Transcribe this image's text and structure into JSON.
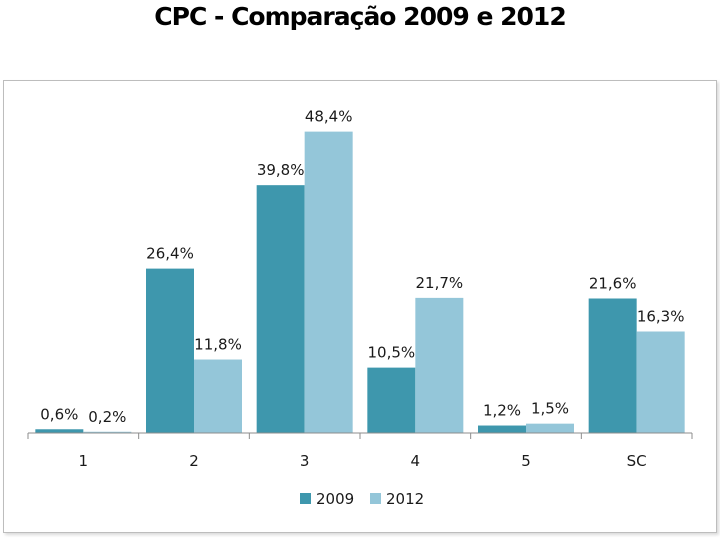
{
  "chart_data": {
    "type": "bar",
    "title": "CPC - Comparação 2009 e 2012",
    "categories": [
      "1",
      "2",
      "3",
      "4",
      "5",
      "SC"
    ],
    "series": [
      {
        "name": "2009",
        "color": "#3e97ad",
        "values": [
          0.6,
          26.4,
          39.8,
          10.5,
          1.2,
          21.6
        ],
        "labels": [
          "0,6%",
          "26,4%",
          "39,8%",
          "10,5%",
          "1,2%",
          "21,6%"
        ]
      },
      {
        "name": "2012",
        "color": "#94c6d9",
        "values": [
          0.2,
          11.8,
          48.4,
          21.7,
          1.5,
          16.3
        ],
        "labels": [
          "0,2%",
          "11,8%",
          "48,4%",
          "21,7%",
          "1,5%",
          "16,3%"
        ]
      }
    ],
    "ylim": [
      0,
      50
    ],
    "grid": false,
    "legend_position": "bottom"
  }
}
